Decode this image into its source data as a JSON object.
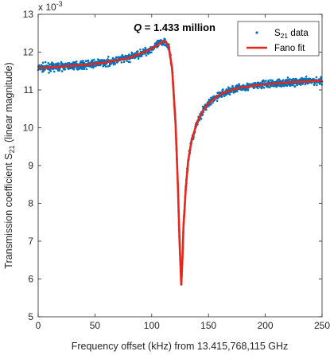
{
  "chart_data": {
    "type": "scatter",
    "xlabel": "Frequency offset (kHz) from 13.415,768,115 GHz",
    "ylabel_main": "Transmission coefficient S",
    "ylabel_sub": "21",
    "ylabel_tail": "(linear magnitude)",
    "y_exponent_base": "x 10",
    "y_exponent_power": "-3",
    "annotation_q": "Q",
    "annotation_value": " = 1.433 million",
    "xlim": [
      0,
      250
    ],
    "ylim": [
      5,
      13
    ],
    "xticks": [
      "0",
      "50",
      "100",
      "150",
      "200",
      "250"
    ],
    "yticks": [
      "5",
      "6",
      "7",
      "8",
      "9",
      "10",
      "11",
      "12",
      "13"
    ],
    "legend": {
      "position": "top-right",
      "data_label_main": "S",
      "data_label_sub": "21",
      "data_label_tail": " data",
      "fit_label": "Fano fit"
    },
    "series": [
      {
        "name": "S21 data",
        "style": "scatter",
        "color": "#0072BD",
        "noise": 0.07,
        "x": [
          0,
          20,
          40,
          60,
          80,
          95,
          103,
          108,
          112,
          115,
          118,
          121,
          123,
          124.5,
          126,
          127,
          128,
          130,
          132,
          135,
          140,
          145,
          150,
          160,
          170,
          180,
          200,
          220,
          240,
          250
        ],
        "y": [
          11.58,
          11.62,
          11.66,
          11.73,
          11.85,
          12.02,
          12.15,
          12.25,
          12.29,
          12.15,
          11.55,
          10.1,
          8.5,
          7.0,
          5.85,
          6.5,
          7.4,
          8.4,
          9.1,
          9.65,
          10.15,
          10.45,
          10.65,
          10.88,
          11.0,
          11.07,
          11.15,
          11.2,
          11.23,
          11.25
        ]
      },
      {
        "name": "Fano fit",
        "style": "line",
        "color": "#E8261C",
        "x": [
          0,
          20,
          40,
          60,
          80,
          95,
          103,
          108,
          112,
          115,
          118,
          121,
          123,
          124.5,
          126,
          127,
          128,
          130,
          132,
          135,
          140,
          145,
          150,
          160,
          170,
          180,
          200,
          220,
          240,
          250
        ],
        "y": [
          11.58,
          11.62,
          11.66,
          11.73,
          11.85,
          12.02,
          12.15,
          12.25,
          12.29,
          12.15,
          11.55,
          10.1,
          8.5,
          7.0,
          5.85,
          6.5,
          7.4,
          8.4,
          9.1,
          9.65,
          10.15,
          10.45,
          10.65,
          10.88,
          11.0,
          11.07,
          11.15,
          11.2,
          11.23,
          11.25
        ]
      }
    ],
    "grid": false
  }
}
